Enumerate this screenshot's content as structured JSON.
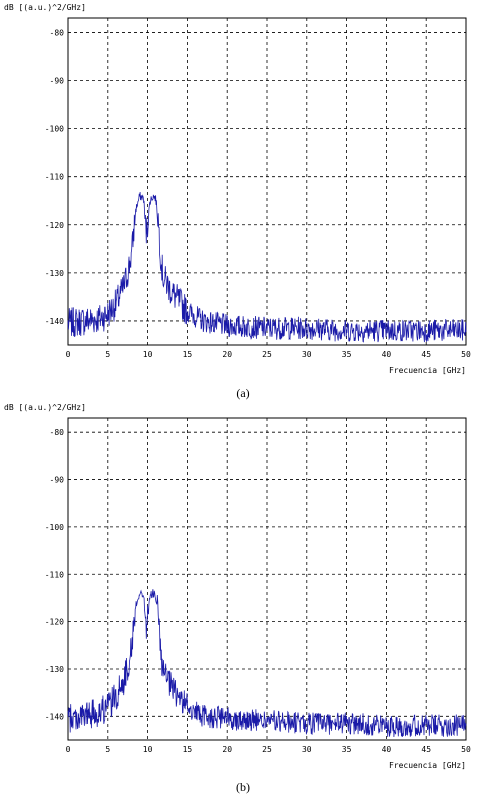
{
  "captions": [
    "(a)",
    "(b)"
  ],
  "chart_data": [
    {
      "type": "line",
      "title": "",
      "ylabel": "dB [(a.u.)^2/GHz]",
      "xlabel": "Frecuencia [GHz]",
      "xlim": [
        0,
        50
      ],
      "ylim": [
        -145,
        -77
      ],
      "x_ticks": [
        0,
        5,
        10,
        15,
        20,
        25,
        30,
        35,
        40,
        45,
        50
      ],
      "y_ticks": [
        -80,
        -90,
        -100,
        -110,
        -120,
        -130,
        -140
      ],
      "grid": true,
      "line_color": "#1a1aa8",
      "series": [
        {
          "x": [
            0,
            2,
            4,
            5,
            6,
            7,
            7.5,
            8,
            8.5,
            9,
            9.5,
            9.8,
            10,
            10.3,
            10.7,
            11,
            11.3,
            11.7,
            12,
            13,
            14,
            15,
            17,
            20,
            25,
            30,
            35,
            40,
            45,
            50
          ],
          "values": [
            -140.5,
            -140,
            -139.5,
            -138.5,
            -136.5,
            -133,
            -130,
            -126,
            -117,
            -114,
            -114.5,
            -122,
            -120,
            -115,
            -114,
            -114.5,
            -118,
            -128,
            -131,
            -134,
            -136,
            -138,
            -140,
            -141,
            -141.5,
            -141.5,
            -142,
            -142,
            -142,
            -142
          ]
        }
      ]
    },
    {
      "type": "line",
      "title": "",
      "ylabel": "dB [(a.u.)^2/GHz]",
      "xlabel": "Frecuencia [GHz]",
      "xlim": [
        0,
        50
      ],
      "ylim": [
        -145,
        -77
      ],
      "x_ticks": [
        0,
        5,
        10,
        15,
        20,
        25,
        30,
        35,
        40,
        45,
        50
      ],
      "y_ticks": [
        -80,
        -90,
        -100,
        -110,
        -120,
        -130,
        -140
      ],
      "grid": true,
      "line_color": "#1a1aa8",
      "series": [
        {
          "x": [
            0,
            2,
            4,
            5,
            6,
            7,
            7.5,
            8,
            8.5,
            9,
            9.5,
            9.8,
            10,
            10.3,
            10.7,
            11,
            11.3,
            11.7,
            12,
            13,
            14,
            15,
            17,
            20,
            25,
            30,
            35,
            40,
            45,
            50
          ],
          "values": [
            -140.5,
            -140,
            -139,
            -138,
            -136,
            -132.5,
            -129.5,
            -125.5,
            -116.5,
            -114,
            -114.5,
            -121,
            -119.5,
            -114.5,
            -114,
            -114.5,
            -118,
            -128,
            -131,
            -134,
            -136,
            -138,
            -140,
            -140.5,
            -141,
            -141.5,
            -141.5,
            -142,
            -142,
            -142
          ]
        }
      ]
    }
  ]
}
